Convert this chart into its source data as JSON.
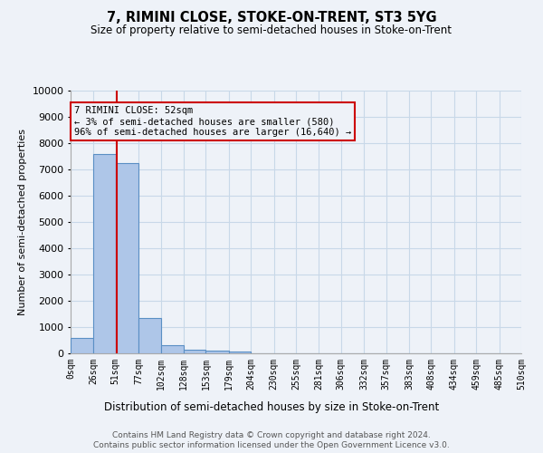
{
  "title": "7, RIMINI CLOSE, STOKE-ON-TRENT, ST3 5YG",
  "subtitle": "Size of property relative to semi-detached houses in Stoke-on-Trent",
  "xlabel": "Distribution of semi-detached houses by size in Stoke-on-Trent",
  "ylabel": "Number of semi-detached properties",
  "footer1": "Contains HM Land Registry data © Crown copyright and database right 2024.",
  "footer2": "Contains public sector information licensed under the Open Government Licence v3.0.",
  "property_size": 52,
  "property_label": "7 RIMINI CLOSE: 52sqm",
  "pct_smaller": 3,
  "count_smaller": 580,
  "pct_larger": 96,
  "count_larger": 16640,
  "bin_edges": [
    0,
    26,
    51,
    77,
    102,
    128,
    153,
    179,
    204,
    230,
    255,
    281,
    306,
    332,
    357,
    383,
    408,
    434,
    459,
    485,
    510
  ],
  "bin_labels": [
    "0sqm",
    "26sqm",
    "51sqm",
    "77sqm",
    "102sqm",
    "128sqm",
    "153sqm",
    "179sqm",
    "204sqm",
    "230sqm",
    "255sqm",
    "281sqm",
    "306sqm",
    "332sqm",
    "357sqm",
    "383sqm",
    "408sqm",
    "434sqm",
    "459sqm",
    "485sqm",
    "510sqm"
  ],
  "bar_values": [
    580,
    7600,
    7250,
    1350,
    300,
    150,
    100,
    80,
    0,
    0,
    0,
    0,
    0,
    0,
    0,
    0,
    0,
    0,
    0,
    0
  ],
  "bar_color": "#aec6e8",
  "bar_edge_color": "#5a8fc4",
  "grid_color": "#c8d8e8",
  "vline_color": "#cc0000",
  "annotation_box_color": "#cc0000",
  "ylim": [
    0,
    10000
  ],
  "yticks": [
    0,
    1000,
    2000,
    3000,
    4000,
    5000,
    6000,
    7000,
    8000,
    9000,
    10000
  ],
  "bg_color": "#eef2f8"
}
